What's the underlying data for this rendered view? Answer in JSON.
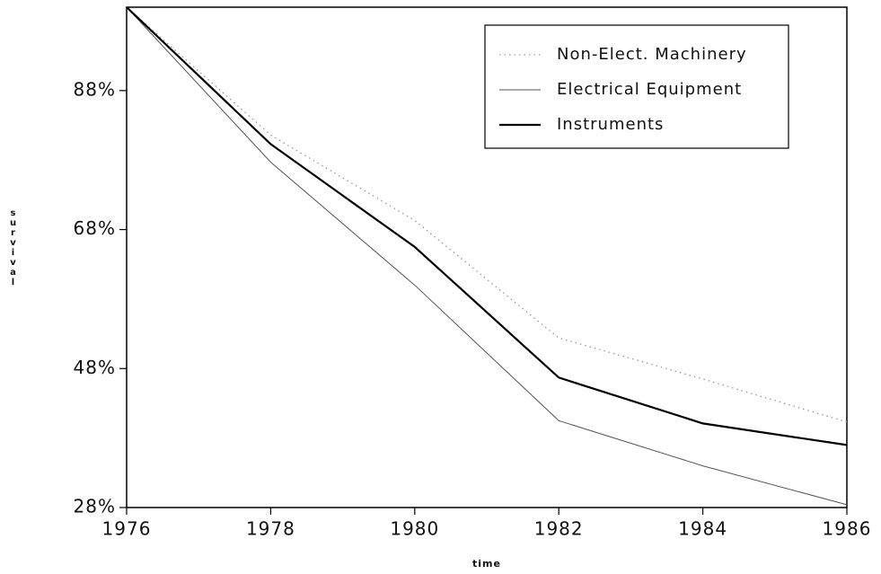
{
  "chart_data": {
    "type": "line",
    "x": [
      1976,
      1978,
      1980,
      1982,
      1984,
      1986
    ],
    "series": [
      {
        "name": "Non-Elect. Machinery",
        "color": "#999999",
        "style": "dotted",
        "values": [
          100,
          81.6,
          69.3,
          52.4,
          46.5,
          40.3
        ]
      },
      {
        "name": "Electrical Equipment",
        "color": "#555555",
        "style": "thin",
        "values": [
          100,
          77.7,
          60,
          40.5,
          34,
          28.4
        ]
      },
      {
        "name": "Instruments",
        "color": "#000000",
        "style": "thick",
        "values": [
          100,
          80.3,
          65.5,
          46.7,
          40.1,
          37
        ]
      }
    ],
    "xlim": [
      1976,
      1986
    ],
    "xticks": [
      1976,
      1978,
      1980,
      1982,
      1984,
      1986
    ],
    "ylim": [
      28,
      100
    ],
    "yticks": [
      {
        "value": 28,
        "label": "28%"
      },
      {
        "value": 48,
        "label": "48%"
      },
      {
        "value": 68,
        "label": "68%"
      },
      {
        "value": 88,
        "label": "88%"
      }
    ],
    "xlabel": "time",
    "ylabel": "survival",
    "legend": "upper right",
    "grid": false
  }
}
